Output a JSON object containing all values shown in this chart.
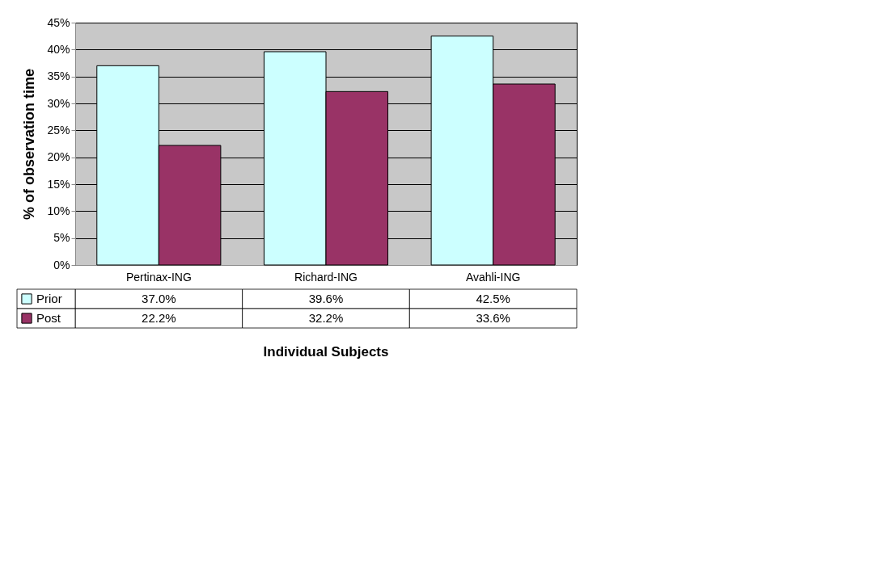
{
  "chart_data": {
    "type": "bar",
    "xlabel": "Individual Subjects",
    "ylabel": "% of observation time",
    "categories": [
      "Pertinax-ING",
      "Richard-ING",
      "Avahli-ING"
    ],
    "series": [
      {
        "name": "Prior",
        "color": "#ccffff",
        "values": [
          37.0,
          39.6,
          42.5
        ],
        "value_labels": [
          "37.0%",
          "39.6%",
          "42.5%"
        ]
      },
      {
        "name": "Post",
        "color": "#993366",
        "values": [
          22.2,
          32.2,
          33.6
        ],
        "value_labels": [
          "22.2%",
          "32.2%",
          "33.6%"
        ]
      }
    ],
    "ylim": [
      0,
      45
    ],
    "yticks": [
      {
        "value": 0,
        "label": "0%"
      },
      {
        "value": 5,
        "label": "5%"
      },
      {
        "value": 10,
        "label": "10%"
      },
      {
        "value": 15,
        "label": "15%"
      },
      {
        "value": 20,
        "label": "20%"
      },
      {
        "value": 25,
        "label": "25%"
      },
      {
        "value": 30,
        "label": "30%"
      },
      {
        "value": 35,
        "label": "35%"
      },
      {
        "value": 40,
        "label": "40%"
      },
      {
        "value": 45,
        "label": "45%"
      }
    ],
    "grid": "y",
    "legend": "bottom"
  }
}
